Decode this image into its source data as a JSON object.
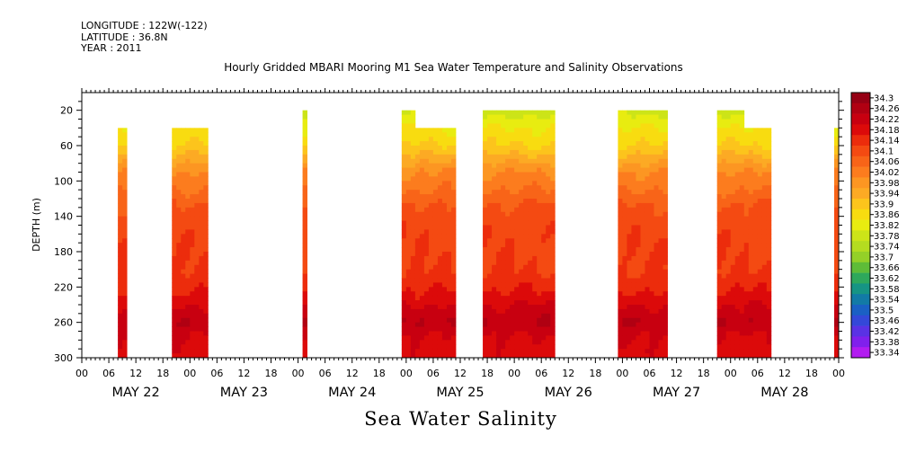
{
  "header": {
    "longitude": "LONGITUDE : 122W(-122)",
    "latitude": "LATITUDE : 36.8N",
    "year": "YEAR : 2011"
  },
  "chart_data": {
    "type": "heatmap",
    "title": "Hourly Gridded MBARI Mooring M1 Sea Water Temperature and Salinity Observations",
    "bottom_title": "Sea Water Salinity",
    "ylabel": "DEPTH (m)",
    "xlabel": "",
    "x_unit": "hours since 2011-05-22 00:00",
    "xlim": [
      0,
      168
    ],
    "ylim": [
      300,
      0
    ],
    "y_ticks": [
      20,
      60,
      100,
      140,
      180,
      220,
      260,
      300
    ],
    "x_hour_ticks": [
      "00",
      "06",
      "12",
      "18",
      "00",
      "06",
      "12",
      "18",
      "00",
      "06",
      "12",
      "18",
      "00",
      "06",
      "12",
      "18",
      "00",
      "06",
      "12",
      "18",
      "00",
      "06",
      "12",
      "18",
      "00",
      "06",
      "12",
      "18",
      "00"
    ],
    "date_labels": [
      "MAY 22",
      "MAY 23",
      "MAY 24",
      "MAY 25",
      "MAY 26",
      "MAY 27",
      "MAY 28"
    ],
    "colorbar": {
      "labels": [
        "34.3",
        "34.26",
        "34.22",
        "34.18",
        "34.14",
        "34.1",
        "34.06",
        "34.02",
        "33.98",
        "33.94",
        "33.9",
        "33.86",
        "33.82",
        "33.78",
        "33.74",
        "33.7",
        "33.66",
        "33.62",
        "33.58",
        "33.54",
        "33.5",
        "33.46",
        "33.42",
        "33.38",
        "33.34"
      ],
      "colors": [
        "#950014",
        "#b00012",
        "#c80010",
        "#dc0a0a",
        "#ec2c0c",
        "#f44a12",
        "#f86418",
        "#fc7c1e",
        "#fc9622",
        "#fcaa24",
        "#fcc41c",
        "#f8dc10",
        "#e8ec10",
        "#cce418",
        "#b4dc20",
        "#94d028",
        "#5ebc38",
        "#2ea85c",
        "#169484",
        "#127aa6",
        "#1a60c4",
        "#3448d8",
        "#5a32e4",
        "#8020ec",
        "#b21cf0"
      ]
    },
    "segments": [
      {
        "start": 8,
        "end": 10,
        "top": 40,
        "bottom": 300
      },
      {
        "start": 20,
        "end": 28,
        "top": 40,
        "bottom": 300
      },
      {
        "start": 49,
        "end": 50,
        "top": 20,
        "bottom": 300
      },
      {
        "start": 71,
        "end": 74,
        "top": 20,
        "bottom": 300
      },
      {
        "start": 74,
        "end": 83,
        "top": 40,
        "bottom": 300
      },
      {
        "start": 89,
        "end": 105,
        "top": 20,
        "bottom": 300
      },
      {
        "start": 119,
        "end": 130,
        "top": 20,
        "bottom": 300
      },
      {
        "start": 141,
        "end": 147,
        "top": 20,
        "bottom": 300
      },
      {
        "start": 147,
        "end": 153,
        "top": 40,
        "bottom": 300
      },
      {
        "start": 167,
        "end": 168,
        "top": 40,
        "bottom": 300
      }
    ],
    "depth_profile": [
      {
        "depth": 20,
        "value": 33.78
      },
      {
        "depth": 40,
        "value": 33.84
      },
      {
        "depth": 60,
        "value": 33.88
      },
      {
        "depth": 75,
        "value": 33.94
      },
      {
        "depth": 90,
        "value": 34.0
      },
      {
        "depth": 110,
        "value": 34.04
      },
      {
        "depth": 130,
        "value": 34.09
      },
      {
        "depth": 160,
        "value": 34.11
      },
      {
        "depth": 200,
        "value": 34.12
      },
      {
        "depth": 225,
        "value": 34.16
      },
      {
        "depth": 245,
        "value": 34.21
      },
      {
        "depth": 260,
        "value": 34.24
      },
      {
        "depth": 275,
        "value": 34.2
      },
      {
        "depth": 300,
        "value": 34.18
      }
    ]
  }
}
